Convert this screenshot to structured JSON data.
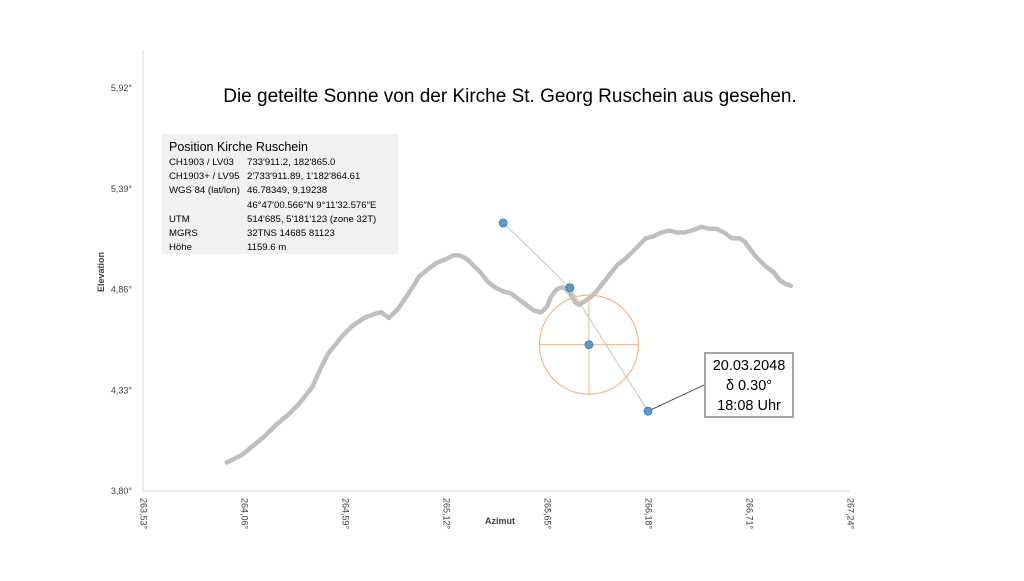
{
  "chart_data": {
    "type": "line",
    "title": "Die geteilte Sonne von der Kirche St. Georg Ruschein aus gesehen.",
    "xlabel": "Azimut",
    "ylabel": "Elevation",
    "xlim": [
      263.53,
      267.24
    ],
    "ylim": [
      3.8,
      6.12
    ],
    "x_ticks": [
      "263,53°",
      "264,06°",
      "264,59°",
      "265,12°",
      "265,65°",
      "266,18°",
      "266,71°",
      "267,24°"
    ],
    "y_ticks": [
      "3,80°",
      "4,33°",
      "4,86°",
      "5,39°",
      "5,92°"
    ],
    "grid": false,
    "series": [
      {
        "role": "horizon",
        "color": "#bfbfbf",
        "x": [
          263.97,
          264.05,
          264.11,
          264.17,
          264.23,
          264.29,
          264.35,
          264.42,
          264.46,
          264.5,
          264.54,
          264.58,
          264.63,
          264.69,
          264.74,
          264.78,
          264.82,
          264.87,
          264.91,
          264.95,
          264.98,
          265.03,
          265.07,
          265.12,
          265.16,
          265.19,
          265.23,
          265.26,
          265.3,
          265.34,
          265.38,
          265.42,
          265.46,
          265.5,
          265.54,
          265.58,
          265.62,
          265.65,
          265.67,
          265.7,
          265.72,
          265.74,
          265.77,
          265.8,
          265.82,
          265.85,
          265.88,
          265.91,
          265.94,
          265.98,
          266.02,
          266.06,
          266.1,
          266.14,
          266.17,
          266.21,
          266.25,
          266.29,
          266.33,
          266.37,
          266.41,
          266.46,
          266.5,
          266.54,
          266.58,
          266.62,
          266.66,
          266.69,
          266.71,
          266.74,
          266.77,
          266.8,
          266.84,
          266.87,
          266.9,
          266.93
        ],
        "y": [
          3.95,
          3.99,
          4.04,
          4.09,
          4.15,
          4.2,
          4.26,
          4.35,
          4.44,
          4.52,
          4.57,
          4.62,
          4.67,
          4.71,
          4.73,
          4.74,
          4.71,
          4.76,
          4.82,
          4.88,
          4.93,
          4.97,
          5.0,
          5.02,
          5.04,
          5.04,
          5.02,
          4.99,
          4.95,
          4.9,
          4.87,
          4.85,
          4.84,
          4.81,
          4.78,
          4.75,
          4.74,
          4.77,
          4.82,
          4.86,
          4.87,
          4.87,
          4.84,
          4.79,
          4.78,
          4.8,
          4.82,
          4.85,
          4.89,
          4.94,
          4.99,
          5.02,
          5.06,
          5.1,
          5.13,
          5.14,
          5.16,
          5.17,
          5.16,
          5.16,
          5.17,
          5.19,
          5.18,
          5.18,
          5.16,
          5.13,
          5.13,
          5.11,
          5.08,
          5.04,
          5.01,
          4.98,
          4.95,
          4.91,
          4.89,
          4.88
        ]
      },
      {
        "role": "sun-path",
        "color": "#bfbfbf",
        "x": [
          265.42,
          265.77,
          266.18
        ],
        "y": [
          5.21,
          4.87,
          4.22
        ]
      }
    ],
    "points": [
      {
        "x": 265.42,
        "y": 5.21
      },
      {
        "x": 265.77,
        "y": 4.87
      },
      {
        "x": 265.87,
        "y": 4.57
      },
      {
        "x": 266.18,
        "y": 4.22
      }
    ],
    "sun": {
      "x": 265.87,
      "y": 4.57,
      "radius_deg": 0.26,
      "color": "#f4b183"
    },
    "point_color": "#5b9bd5",
    "callout": {
      "target": {
        "x": 266.18,
        "y": 4.22
      },
      "lines": [
        "20.03.2048",
        "δ 0.30°",
        "18:08 Uhr"
      ]
    },
    "info_box": {
      "heading": "Position Kirche Ruschein",
      "rows": [
        {
          "key": "CH1903 / LV03",
          "value": "733'911.2, 182'865.0"
        },
        {
          "key": "CH1903+ / LV95",
          "value": "2'733'911.89, 1'182'864.61"
        },
        {
          "key": "WGS 84 (lat/lon)",
          "value": "46.78349, 9.19238"
        },
        {
          "key": "",
          "value": "46°47′00.566″N 9°11′32.576″E"
        },
        {
          "key": "UTM",
          "value": "514'685, 5'181'123 (zone 32T)"
        },
        {
          "key": "MGRS",
          "value": "32TNS 14685 81123"
        },
        {
          "key": "Höhe",
          "value": "1159.6 m"
        }
      ]
    }
  }
}
